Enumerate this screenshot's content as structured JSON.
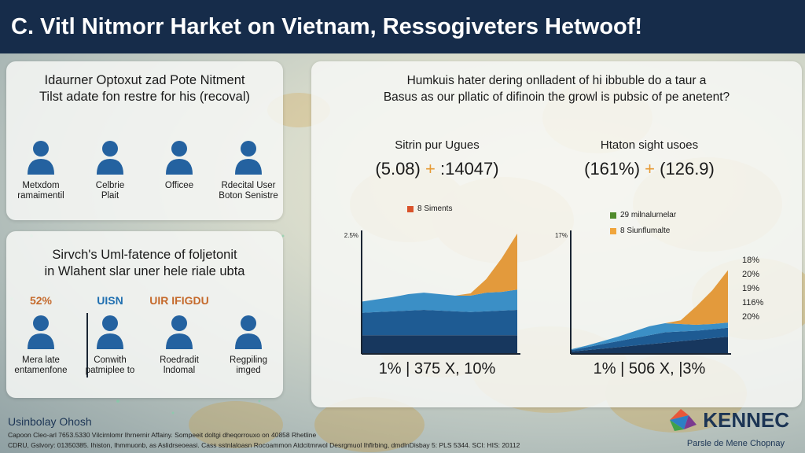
{
  "header": {
    "title": "C. Vitl Nitmorr Harket on Vietnam, Ressogiveters Hetwoof!"
  },
  "panel_a": {
    "title_line1": "Idaurner Optoxut zad Pote Nitment",
    "title_line2": "Tilst adate fon restre for his (recoval)",
    "persons": [
      {
        "line1": "Metxdom",
        "line2": "ramaimentil"
      },
      {
        "line1": "Celbrie",
        "line2": "Plait"
      },
      {
        "line1": "Officee",
        "line2": ""
      },
      {
        "line1": "Rdecital User",
        "line2": "Boton Senistre"
      }
    ]
  },
  "panel_b": {
    "title_line1": "Sirvch's Uml-fatence of foljetonit",
    "title_line2": "in Wlahent slar uner hele riale ubta",
    "stats": [
      "52%",
      "UISN",
      "UIR IFIGDU"
    ],
    "persons": [
      {
        "line1": "Mera late",
        "line2": "entamenfone"
      },
      {
        "line1": "Conwith",
        "line2": "patmiplee to"
      },
      {
        "line1": "Roedradit",
        "line2": "lndomal"
      },
      {
        "line1": "Regpiling",
        "line2": "imged"
      }
    ]
  },
  "panel_c": {
    "title_line1": "Humkuis hater dering onlladent of hi ibbuble do a taur a",
    "title_line2": "Basus as our pllatic of difinoin the growl is pubsic of pe anetent?"
  },
  "chart_data": [
    {
      "type": "area",
      "title": "Sitrin pur Ugues",
      "headline_left": "(5.08)",
      "headline_plus": "+",
      "headline_right": ":14047)",
      "legend": [
        {
          "label": "8 Siments",
          "color": "#d9532b"
        }
      ],
      "ytick_label": "2.5%",
      "footer": "1% | 375 X, 10%",
      "x": [
        0,
        1,
        2,
        3,
        4,
        5,
        6,
        7,
        8,
        9,
        10
      ],
      "series": [
        {
          "color": "#17375e",
          "values": [
            0.25,
            0.25,
            0.25,
            0.25,
            0.25,
            0.25,
            0.25,
            0.25,
            0.25,
            0.25,
            0.25
          ]
        },
        {
          "color": "#1e5b93",
          "values": [
            0.3,
            0.31,
            0.32,
            0.33,
            0.34,
            0.33,
            0.32,
            0.31,
            0.32,
            0.33,
            0.34
          ]
        },
        {
          "color": "#3b8fc6",
          "values": [
            0.15,
            0.17,
            0.19,
            0.22,
            0.23,
            0.22,
            0.21,
            0.22,
            0.25,
            0.25,
            0.27
          ]
        },
        {
          "color": "#e39a3c",
          "values": [
            0.0,
            0.0,
            0.0,
            0.0,
            0.0,
            0.0,
            0.0,
            0.03,
            0.18,
            0.45,
            0.75
          ]
        }
      ],
      "ylim": [
        0,
        1.6
      ]
    },
    {
      "type": "area",
      "title": "Htaton sight usoes",
      "headline_left": "(161%)",
      "headline_plus": "+",
      "headline_right": "(126.9)",
      "legend": [
        {
          "label": "29 milnalurnelar",
          "color": "#4f8a2b"
        },
        {
          "label": "8 Siunflumalte",
          "color": "#f0a53c"
        }
      ],
      "ytick_label": "17%",
      "right_labels": [
        "18%",
        "20%",
        "19%",
        "116%",
        "20%"
      ],
      "footer": "1% | 506 X, |3%",
      "x": [
        0,
        1,
        2,
        3,
        4,
        5,
        6,
        7,
        8,
        9,
        10
      ],
      "series": [
        {
          "color": "#17375e",
          "values": [
            0.03,
            0.05,
            0.07,
            0.09,
            0.11,
            0.13,
            0.15,
            0.17,
            0.19,
            0.21,
            0.23
          ]
        },
        {
          "color": "#1e5b93",
          "values": [
            0.02,
            0.04,
            0.06,
            0.08,
            0.1,
            0.12,
            0.14,
            0.13,
            0.12,
            0.12,
            0.12
          ]
        },
        {
          "color": "#3b8fc6",
          "values": [
            0.01,
            0.02,
            0.04,
            0.06,
            0.09,
            0.12,
            0.12,
            0.1,
            0.08,
            0.07,
            0.07
          ]
        },
        {
          "color": "#e39a3c",
          "values": [
            0.0,
            0.0,
            0.0,
            0.0,
            0.0,
            0.0,
            0.0,
            0.05,
            0.25,
            0.45,
            0.7
          ]
        }
      ],
      "ylim": [
        0,
        1.6
      ]
    }
  ],
  "footer": {
    "title": "Usinbolay Ohosh",
    "line1": "Capoon Cleo-arl 7653.5330 Vilcirnlomr Ihrnernir Affainy. Sompeeit doltgi dheqorrouxo on 40858 Rhetline",
    "line2": "CDRU, Gslvory: 01350385. Ihiston, Ihmmuonb, as Aslidrseoeasi. Cass sstnlaloasn Rocoammon Atdcitmrwol Desrgmuol Ihflrbing, dmdlnDisbay 5: PLS 5344. SCI: HIS: 20112"
  },
  "brand": {
    "name": "KENNEC",
    "tagline": "Parsle de Mene Chopnay"
  }
}
